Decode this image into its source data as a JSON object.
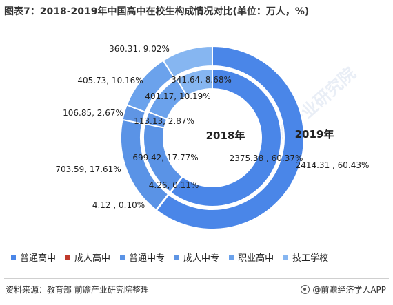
{
  "title": "图表7：2018-2019年中国高中在校生构成情况对比(单位：万人，%)",
  "footer": {
    "source": "资料来源：教育部 前瞻产业研究院整理",
    "brand": "@前瞻经济学人APP"
  },
  "watermark": "前瞻产业研究院",
  "chart_data": {
    "type": "pie",
    "subtype": "doughnut",
    "categories": [
      "普通高中",
      "成人高中",
      "普通中专",
      "成人中专",
      "职业高中",
      "技工学校"
    ],
    "colors": [
      "#4a86e8",
      "#c0392b",
      "#5a93e6",
      "#5f95e4",
      "#6ba2ec",
      "#86b6f1"
    ],
    "series": [
      {
        "name": "2019年",
        "ring": "outer",
        "values": [
          2414.31,
          4.12,
          703.59,
          106.85,
          405.73,
          360.31
        ],
        "labels": [
          "2414.31 , 60.43%",
          "4.12 , 0.10%",
          "703.59, 17.61%",
          "106.85, 2.67%",
          "405.73, 10.16%",
          "360.31, 9.02%"
        ]
      },
      {
        "name": "2018年",
        "ring": "inner",
        "values": [
          2375.38,
          4.26,
          699.42,
          113.13,
          401.17,
          341.64
        ],
        "labels": [
          "2375.38 , 60.37%",
          "4.26, 0.11%",
          "699.42, 17.77%",
          "113.13, 2.87%",
          "401.17, 10.19%",
          "341.64, 8.68%"
        ]
      }
    ],
    "legend_position": "bottom"
  }
}
